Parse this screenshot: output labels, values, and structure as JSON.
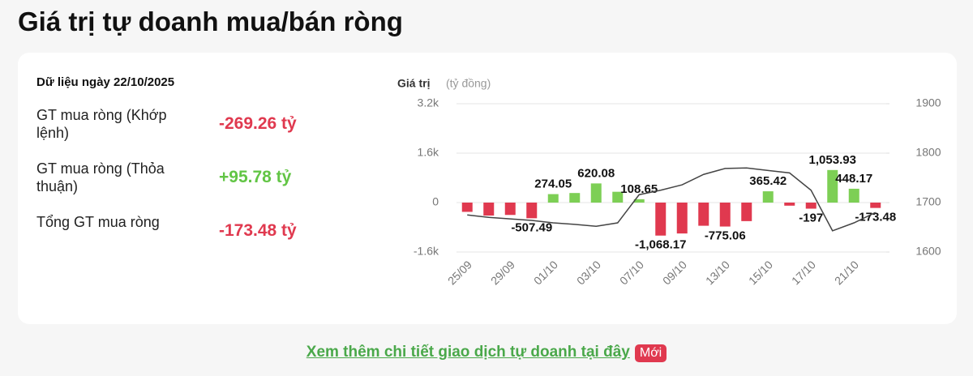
{
  "header": {
    "title": "Giá trị tự doanh mua/bán ròng"
  },
  "summary": {
    "date_label": "Dữ liệu ngày 22/10/2025",
    "rows": [
      {
        "label": "GT mua ròng (Khớp lệnh)",
        "value": "-269.26 tỷ",
        "color": "#e0394f"
      },
      {
        "label": "GT mua ròng (Thỏa thuận)",
        "value": "+95.78 tỷ",
        "color": "#62c545"
      },
      {
        "label": "Tổng GT mua ròng",
        "value": "-173.48 tỷ",
        "color": "#e0394f"
      }
    ]
  },
  "chart_data": {
    "type": "bar-line",
    "y_label": "Giá trị",
    "y_unit": "(tỷ đồng)",
    "categories": [
      "25/09",
      null,
      "29/09",
      null,
      "01/10",
      null,
      "03/10",
      null,
      "07/10",
      null,
      "09/10",
      null,
      "13/10",
      null,
      "15/10",
      null,
      "17/10",
      null,
      "21/10",
      null
    ],
    "series": [
      {
        "values": [
          -300,
          -420,
          -400,
          -507.49,
          274.05,
          310,
          620.08,
          350,
          108.65,
          -1068.17,
          -1000,
          -750,
          -775.06,
          -600,
          365.42,
          -100,
          -197,
          1053.93,
          448.17,
          -173.48
        ],
        "value_labels": [
          null,
          null,
          null,
          "-507.49",
          "274.05",
          null,
          "620.08",
          null,
          "108.65",
          "-1,068.17",
          null,
          null,
          "-775.06",
          null,
          "365.42",
          null,
          "-197",
          "1,053.93",
          "448.17",
          "-173.48"
        ],
        "positive_color": "#7dcf55",
        "negative_color": "#e0394f"
      },
      {
        "axis": "y2",
        "color": "#444444",
        "values": [
          1675,
          1670,
          1667,
          1664,
          1659,
          1656,
          1652,
          1659,
          1716,
          1725,
          1736,
          1757,
          1769,
          1770,
          1765,
          1760,
          1725,
          1643,
          1659,
          1680
        ]
      }
    ],
    "ylim": [
      -1600,
      3200
    ],
    "yticks": [
      {
        "value": -1600,
        "label": "-1.6k"
      },
      0,
      {
        "value": 1600,
        "label": "1.6k"
      },
      {
        "value": 3200,
        "label": "3.2k"
      }
    ],
    "y2lim": [
      1600,
      1900
    ],
    "y2ticks": [
      1600,
      1700,
      1800,
      1900
    ],
    "grid": true
  },
  "footer": {
    "link": "Xem thêm chi tiết giao dịch tự doanh tại đây",
    "badge": "Mới"
  }
}
